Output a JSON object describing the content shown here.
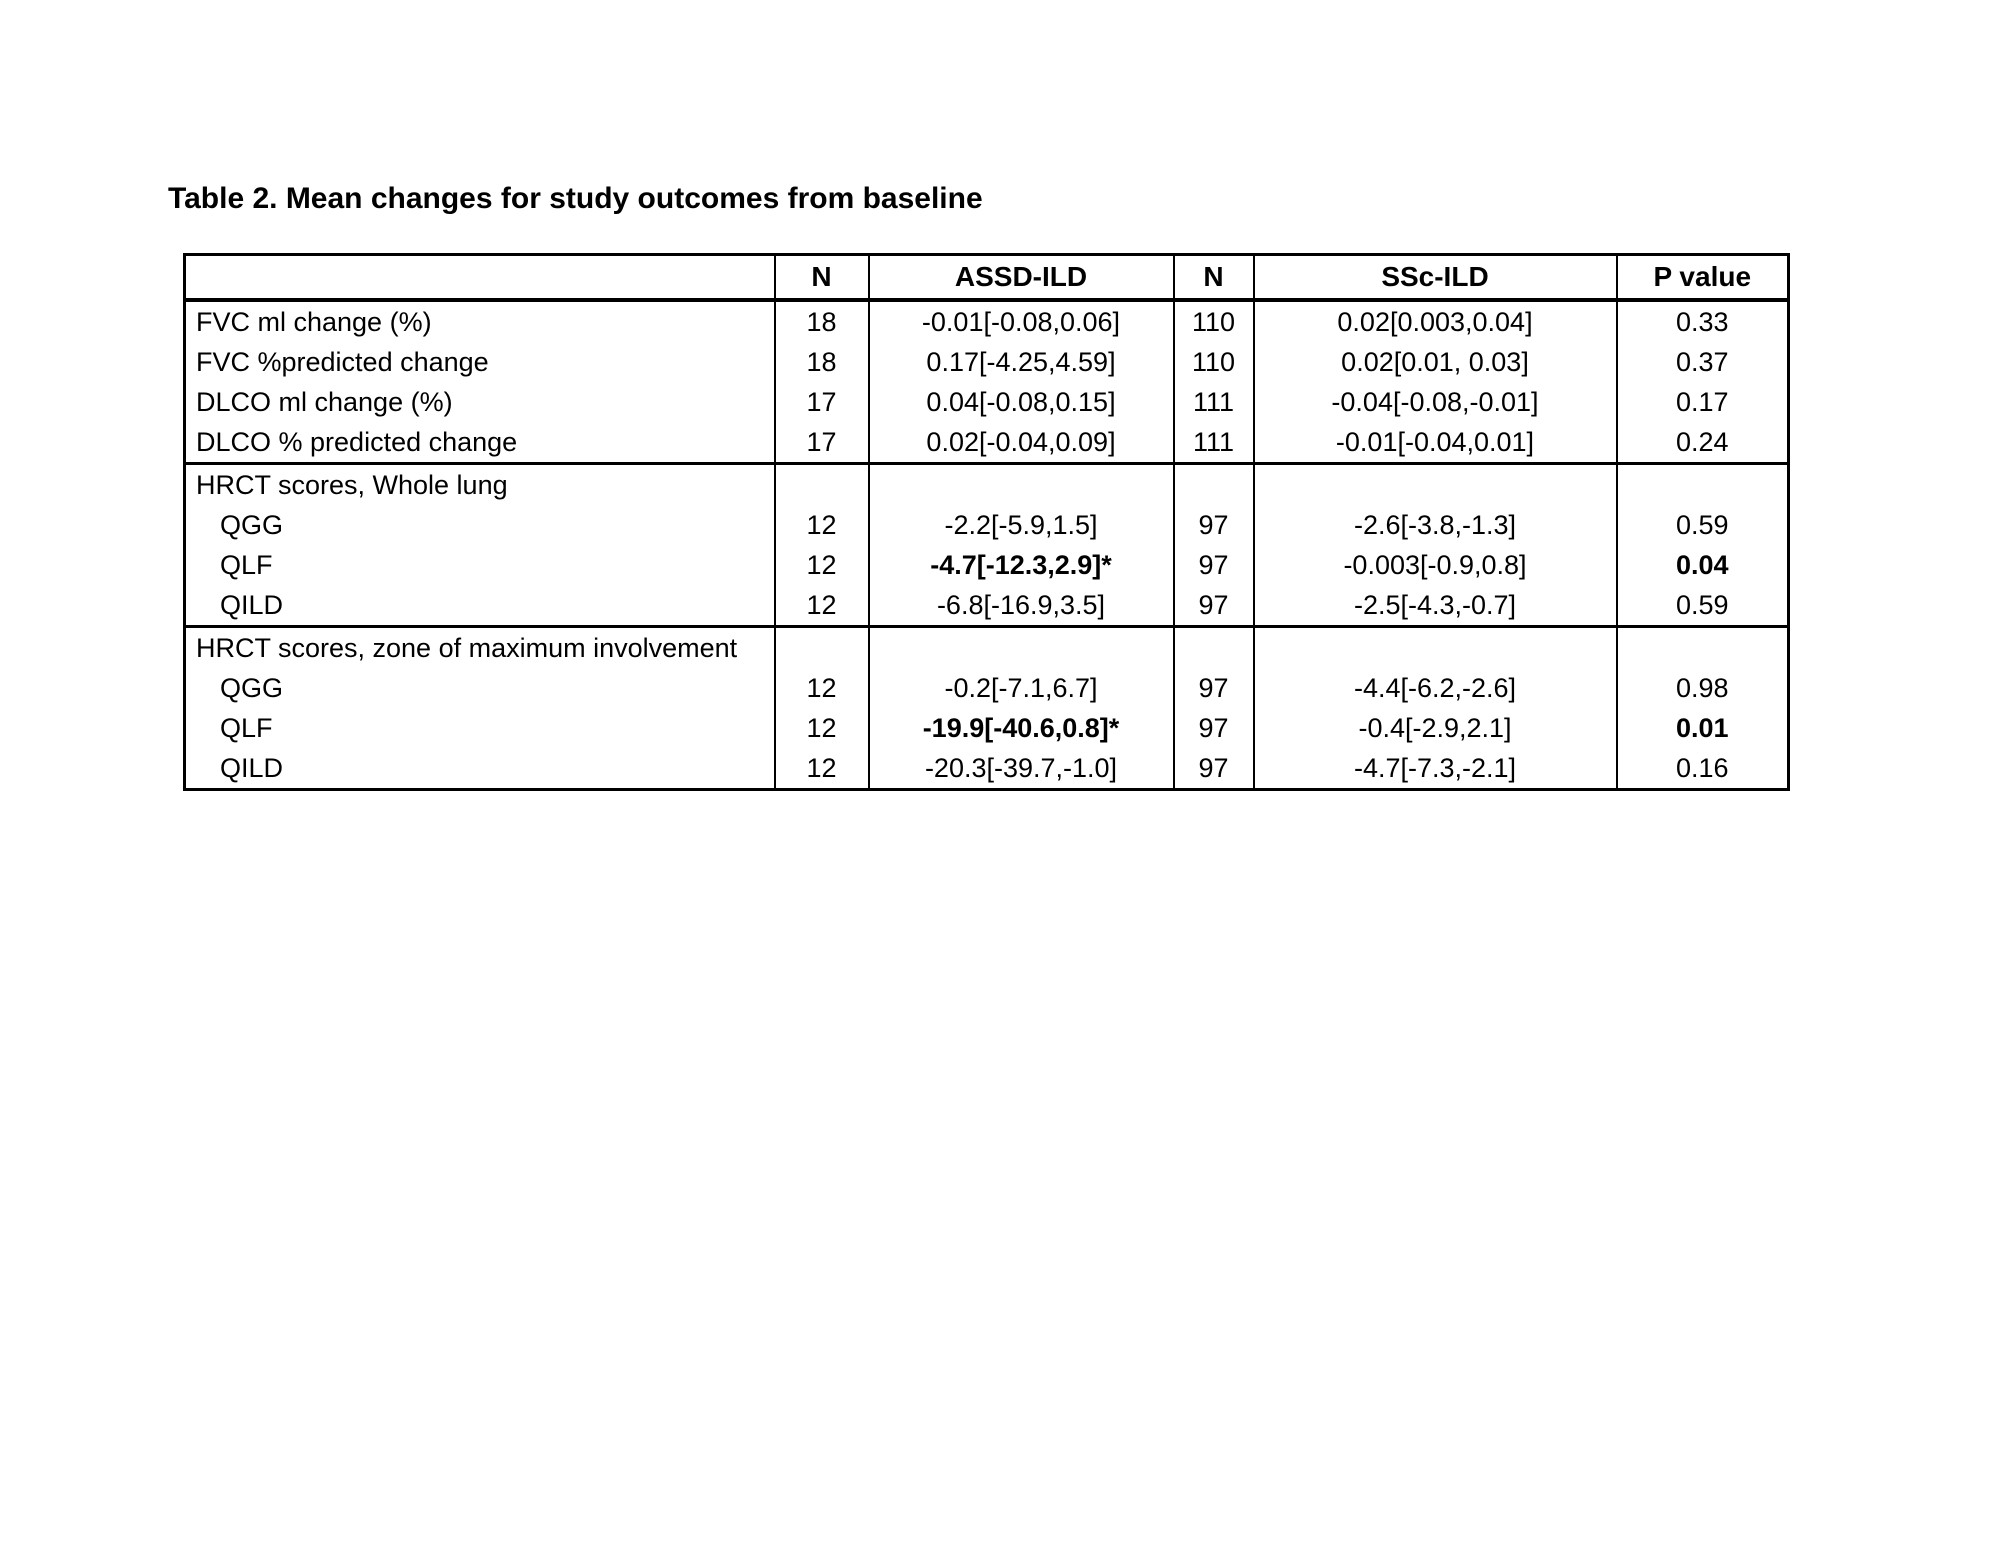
{
  "title": "Table 2. Mean changes for study outcomes from baseline",
  "colors": {
    "text": "#000000",
    "border": "#000000",
    "background": "#ffffff"
  },
  "table": {
    "headers": [
      "",
      "N",
      "ASSD-ILD",
      "N",
      "SSc-ILD",
      "P value"
    ],
    "rows": [
      {
        "type": "data",
        "label": "FVC ml change (%)",
        "indent": false,
        "section_start": false,
        "cells": [
          "18",
          "-0.01[-0.08,0.06]",
          "110",
          "0.02[0.003,0.04]",
          "0.33"
        ],
        "bold_cells": []
      },
      {
        "type": "data",
        "label": "FVC %predicted change",
        "indent": false,
        "section_start": false,
        "cells": [
          "18",
          "0.17[-4.25,4.59]",
          "110",
          "0.02[0.01, 0.03]",
          "0.37"
        ],
        "bold_cells": []
      },
      {
        "type": "data",
        "label": "DLCO ml change (%)",
        "indent": false,
        "section_start": false,
        "cells": [
          "17",
          "0.04[-0.08,0.15]",
          "111",
          "-0.04[-0.08,-0.01]",
          "0.17"
        ],
        "bold_cells": []
      },
      {
        "type": "data",
        "label": "DLCO % predicted change",
        "indent": false,
        "section_start": false,
        "cells": [
          "17",
          "0.02[-0.04,0.09]",
          "111",
          "-0.01[-0.04,0.01]",
          "0.24"
        ],
        "bold_cells": []
      },
      {
        "type": "section",
        "label": "HRCT scores, Whole lung",
        "indent": false,
        "section_start": true,
        "cells": [
          "",
          "",
          "",
          "",
          ""
        ],
        "bold_cells": []
      },
      {
        "type": "data",
        "label": "QGG",
        "indent": true,
        "section_start": false,
        "cells": [
          "12",
          "-2.2[-5.9,1.5]",
          "97",
          "-2.6[-3.8,-1.3]",
          "0.59"
        ],
        "bold_cells": []
      },
      {
        "type": "data",
        "label": "QLF",
        "indent": true,
        "section_start": false,
        "cells": [
          "12",
          "-4.7[-12.3,2.9]*",
          "97",
          "-0.003[-0.9,0.8]",
          "0.04"
        ],
        "bold_cells": [
          1,
          4
        ]
      },
      {
        "type": "data",
        "label": "QILD",
        "indent": true,
        "section_start": false,
        "cells": [
          "12",
          "-6.8[-16.9,3.5]",
          "97",
          "-2.5[-4.3,-0.7]",
          "0.59"
        ],
        "bold_cells": []
      },
      {
        "type": "section",
        "label": "HRCT scores, zone of maximum involvement",
        "indent": false,
        "section_start": true,
        "cells": [
          "",
          "",
          "",
          "",
          ""
        ],
        "bold_cells": []
      },
      {
        "type": "data",
        "label": "QGG",
        "indent": true,
        "section_start": false,
        "cells": [
          "12",
          "-0.2[-7.1,6.7]",
          "97",
          "-4.4[-6.2,-2.6]",
          "0.98"
        ],
        "bold_cells": []
      },
      {
        "type": "data",
        "label": "QLF",
        "indent": true,
        "section_start": false,
        "cells": [
          "12",
          "-19.9[-40.6,0.8]*",
          "97",
          "-0.4[-2.9,2.1]",
          "0.01"
        ],
        "bold_cells": [
          1,
          4
        ]
      },
      {
        "type": "data",
        "label": "QILD",
        "indent": true,
        "section_start": false,
        "cells": [
          "12",
          "-20.3[-39.7,-1.0]",
          "97",
          "-4.7[-7.3,-2.1]",
          "0.16"
        ],
        "bold_cells": []
      }
    ]
  }
}
